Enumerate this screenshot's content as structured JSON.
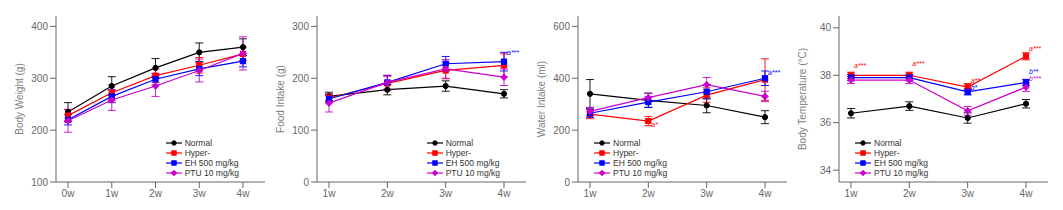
{
  "chart_data": [
    {
      "type": "line",
      "ylabel": "Body Weight (g)",
      "categories": [
        "0w",
        "1w",
        "2w",
        "3w",
        "4w"
      ],
      "ylim": [
        100,
        420
      ],
      "yticks": [
        100,
        200,
        300,
        400
      ],
      "grid": false,
      "legend": "lower right",
      "annotations": [],
      "series": [
        {
          "name": "Normal",
          "color": "#000000",
          "marker": "circle",
          "values": [
            235,
            285,
            320,
            350,
            360
          ],
          "errors": [
            18,
            18,
            18,
            18,
            16
          ]
        },
        {
          "name": "Hyper-",
          "color": "#ff0000",
          "marker": "square",
          "values": [
            228,
            272,
            305,
            325,
            347
          ],
          "errors": [
            12,
            15,
            13,
            15,
            13
          ]
        },
        {
          "name": "EH 500 mg/kg",
          "color": "#0000ff",
          "marker": "square",
          "values": [
            220,
            265,
            298,
            318,
            333
          ],
          "errors": [
            10,
            12,
            11,
            13,
            11
          ]
        },
        {
          "name": "PTU 10 mg/kg",
          "color": "#cc00cc",
          "marker": "diamond",
          "values": [
            218,
            258,
            285,
            315,
            348
          ],
          "errors": [
            22,
            20,
            20,
            22,
            32
          ]
        }
      ]
    },
    {
      "type": "line",
      "ylabel": "Food Intake (g)",
      "categories": [
        "1w",
        "2w",
        "3w",
        "4w"
      ],
      "ylim": [
        0,
        320
      ],
      "yticks": [
        0,
        100,
        200,
        300
      ],
      "grid": false,
      "legend": "lower right",
      "annotations": [
        {
          "text": "a***",
          "x": "4w",
          "y": 242,
          "color": "#0000ff"
        }
      ],
      "series": [
        {
          "name": "Normal",
          "color": "#000000",
          "marker": "circle",
          "values": [
            165,
            178,
            185,
            170
          ],
          "errors": [
            8,
            10,
            10,
            8
          ]
        },
        {
          "name": "Hyper-",
          "color": "#ff0000",
          "marker": "square",
          "values": [
            162,
            190,
            215,
            225
          ],
          "errors": [
            8,
            14,
            16,
            22
          ]
        },
        {
          "name": "EH 500 mg/kg",
          "color": "#0000ff",
          "marker": "square",
          "values": [
            160,
            192,
            228,
            232
          ],
          "errors": [
            7,
            13,
            14,
            18
          ]
        },
        {
          "name": "PTU 10 mg/kg",
          "color": "#cc00cc",
          "marker": "diamond",
          "values": [
            152,
            192,
            218,
            202
          ],
          "errors": [
            17,
            14,
            18,
            16
          ]
        }
      ]
    },
    {
      "type": "line",
      "ylabel": "Water Intake (ml)",
      "categories": [
        "1w",
        "2w",
        "3w",
        "4w"
      ],
      "ylim": [
        0,
        640
      ],
      "yticks": [
        0,
        200,
        400,
        600
      ],
      "grid": false,
      "legend": "lower left",
      "annotations": [
        {
          "text": "a*",
          "x": "2w",
          "y": 208,
          "color": "#ff0000"
        },
        {
          "text": "a***",
          "x": "4w",
          "y": 408,
          "color": "#0000ff"
        }
      ],
      "series": [
        {
          "name": "Normal",
          "color": "#000000",
          "marker": "circle",
          "values": [
            340,
            315,
            295,
            250
          ],
          "errors": [
            55,
            28,
            28,
            25
          ]
        },
        {
          "name": "Hyper-",
          "color": "#ff0000",
          "marker": "square",
          "values": [
            262,
            235,
            335,
            395
          ],
          "errors": [
            18,
            18,
            28,
            80
          ]
        },
        {
          "name": "EH 500 mg/kg",
          "color": "#0000ff",
          "marker": "square",
          "values": [
            265,
            308,
            348,
            400
          ],
          "errors": [
            16,
            20,
            28,
            28
          ]
        },
        {
          "name": "PTU 10 mg/kg",
          "color": "#cc00cc",
          "marker": "diamond",
          "values": [
            272,
            325,
            375,
            330
          ],
          "errors": [
            16,
            16,
            28,
            20
          ]
        }
      ]
    },
    {
      "type": "line",
      "ylabel": "Body Temperature (°C)",
      "categories": [
        "1w",
        "2w",
        "3w",
        "4w"
      ],
      "ylim": [
        33.5,
        40.5
      ],
      "yticks": [
        34,
        36,
        38,
        40
      ],
      "grid": false,
      "legend": "lower left",
      "annotations": [
        {
          "text": "a***",
          "x": "1w",
          "y": 38.25,
          "color": "#ff0000"
        },
        {
          "text": "a***",
          "x": "2w",
          "y": 38.35,
          "color": "#ff0000"
        },
        {
          "text": "a**",
          "x": "3w",
          "y": 37.65,
          "color": "#ff0000"
        },
        {
          "text": "b*",
          "x": "3w",
          "y": 37.35,
          "color": "#0000ff"
        },
        {
          "text": "a***",
          "x": "4w",
          "y": 39.0,
          "color": "#ff0000"
        },
        {
          "text": "b**",
          "x": "4w",
          "y": 38.0,
          "color": "#0000ff"
        },
        {
          "text": "b***",
          "x": "4w",
          "y": 37.7,
          "color": "#cc00cc"
        }
      ],
      "series": [
        {
          "name": "Normal",
          "color": "#000000",
          "marker": "circle",
          "values": [
            36.4,
            36.7,
            36.2,
            36.8
          ],
          "errors": [
            0.2,
            0.18,
            0.22,
            0.18
          ]
        },
        {
          "name": "Hyper-",
          "color": "#ff0000",
          "marker": "square",
          "values": [
            38.0,
            38.0,
            37.5,
            38.8
          ],
          "errors": [
            0.13,
            0.13,
            0.15,
            0.15
          ]
        },
        {
          "name": "EH 500 mg/kg",
          "color": "#0000ff",
          "marker": "square",
          "values": [
            37.9,
            37.9,
            37.3,
            37.7
          ],
          "errors": [
            0.13,
            0.13,
            0.13,
            0.13
          ]
        },
        {
          "name": "PTU 10 mg/kg",
          "color": "#cc00cc",
          "marker": "diamond",
          "values": [
            37.8,
            37.8,
            36.5,
            37.5
          ],
          "errors": [
            0.15,
            0.15,
            0.18,
            0.18
          ]
        }
      ]
    }
  ]
}
